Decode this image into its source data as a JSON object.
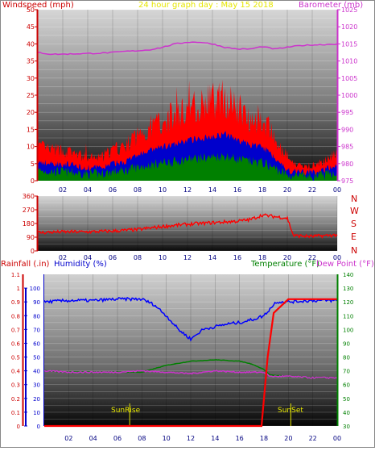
{
  "title": "24 hour graph day : May 15 2018",
  "wind_panel": {
    "left_label": "Windspeed (mph)",
    "right_label": "Barometer (mb)",
    "left_ticks": [
      "0",
      "5",
      "10",
      "15",
      "20",
      "25",
      "30",
      "35",
      "40",
      "45",
      "50"
    ],
    "right_ticks": [
      "975",
      "980",
      "985",
      "990",
      "995",
      "1000",
      "1005",
      "1010",
      "1015",
      "1020",
      "1025"
    ]
  },
  "dir_panel": {
    "ticks": [
      "0",
      "90",
      "180",
      "270",
      "360"
    ],
    "compass": [
      "N",
      "W",
      "S",
      "E",
      "N"
    ]
  },
  "bottom_panel": {
    "rain_label": "Rainfall (.in)",
    "humidity_label": "Humidity (%)",
    "temp_label": "Temperature (°F)",
    "dew_label": "Dew Point (°F)",
    "rain_ticks": [
      "0",
      "0.1",
      "0.2",
      "0.3",
      "0.4",
      "0.5",
      "0.6",
      "0.7",
      "0.8",
      "0.9",
      "1",
      "1.1"
    ],
    "humidity_ticks": [
      "0",
      "10",
      "20",
      "30",
      "40",
      "50",
      "60",
      "70",
      "80",
      "90",
      "100"
    ],
    "temp_ticks": [
      "30",
      "40",
      "50",
      "60",
      "70",
      "80",
      "90",
      "100",
      "110",
      "120",
      "130",
      "140"
    ],
    "sunrise": "SunRise",
    "sunset": "SunSet"
  },
  "x_ticks": [
    "02",
    "04",
    "06",
    "08",
    "10",
    "12",
    "14",
    "16",
    "18",
    "20",
    "22",
    "00"
  ],
  "colors": {
    "wind_gust": "#ff0000",
    "wind_avg": "#0000cc",
    "wind_low": "#008000",
    "barometer": "#cc33cc",
    "direction": "#ff0000",
    "humidity": "#0000ff",
    "temperature": "#008000",
    "dew_point": "#cc33cc",
    "rainfall": "#ff0000",
    "title": "#ffff00"
  },
  "chart_data": [
    {
      "type": "line",
      "series": [
        {
          "name": "Windspeed (mph)",
          "x": [
            0,
            1,
            2,
            3,
            4,
            5,
            6,
            7,
            8,
            9,
            10,
            11,
            12,
            13,
            14,
            15,
            16,
            17,
            18,
            19,
            20,
            21,
            22,
            23,
            24
          ],
          "values": [
            9,
            8,
            8,
            7,
            6,
            6,
            8,
            9,
            12,
            14,
            16,
            17,
            19,
            20,
            21,
            22,
            19,
            17,
            16,
            11,
            5,
            4,
            4,
            5,
            8
          ]
        },
        {
          "name": "Barometer (mb)",
          "x": [
            0,
            1,
            2,
            3,
            4,
            5,
            6,
            7,
            8,
            9,
            10,
            11,
            12,
            13,
            14,
            15,
            16,
            17,
            18,
            19,
            20,
            21,
            22,
            23,
            24
          ],
          "values": [
            1012.5,
            1012,
            1012,
            1012.1,
            1012.2,
            1012.3,
            1012.5,
            1012.8,
            1013,
            1013.3,
            1014,
            1015,
            1015.5,
            1015.5,
            1015,
            1014,
            1013.5,
            1013.5,
            1014.2,
            1013.5,
            1014,
            1014.5,
            1014.7,
            1014.8,
            1015
          ]
        }
      ],
      "xlim": [
        0,
        24
      ],
      "ylim": [
        0,
        50
      ],
      "ylim_right": [
        975,
        1025
      ]
    },
    {
      "type": "line",
      "series": [
        {
          "x": [
            0,
            2,
            4,
            6,
            8,
            10,
            12,
            14,
            16,
            17,
            18,
            19,
            20,
            20.5,
            22,
            24
          ],
          "values": [
            120,
            125,
            125,
            130,
            140,
            160,
            175,
            185,
            195,
            205,
            235,
            225,
            215,
            100,
            95,
            105
          ]
        }
      ],
      "xlim": [
        0,
        24
      ],
      "ylim": [
        0,
        360
      ]
    },
    {
      "type": "line",
      "series": [
        {
          "name": "Humidity (%)",
          "x": [
            0,
            2,
            4,
            6,
            8,
            9,
            10,
            11,
            12,
            13,
            14,
            15,
            16,
            17,
            18,
            19,
            20,
            22,
            24
          ],
          "values": [
            90,
            91,
            91,
            92,
            92,
            88,
            80,
            70,
            63,
            70,
            72,
            74,
            75,
            77,
            80,
            90,
            90,
            91,
            91
          ]
        },
        {
          "name": "Temperature (°F)",
          "x": [
            0,
            2,
            4,
            6,
            8,
            10,
            12,
            14,
            16,
            17,
            18,
            18.5,
            20,
            22,
            24
          ],
          "values": [
            70,
            69,
            69,
            69,
            69,
            74,
            77,
            78,
            77,
            75,
            71,
            67,
            66,
            65,
            65
          ]
        },
        {
          "name": "Dew Point (°F)",
          "x": [
            0,
            2,
            4,
            6,
            8,
            10,
            12,
            14,
            16,
            17,
            18,
            18.5,
            20,
            22,
            24
          ],
          "values": [
            70,
            69,
            69,
            69,
            70,
            69,
            68,
            70,
            69,
            69,
            69,
            66,
            66,
            65,
            65
          ]
        },
        {
          "name": "Rainfall (.in)",
          "x": [
            0,
            16,
            17,
            17.8,
            18.3,
            18.8,
            20,
            24
          ],
          "values": [
            0,
            0,
            0,
            0,
            0.5,
            0.82,
            0.92,
            0.92
          ]
        }
      ],
      "xlim": [
        0,
        24
      ],
      "ylim_rain": [
        0,
        1.1
      ],
      "ylim_humidity": [
        0,
        100
      ],
      "ylim_temperature": [
        30,
        140
      ]
    }
  ]
}
